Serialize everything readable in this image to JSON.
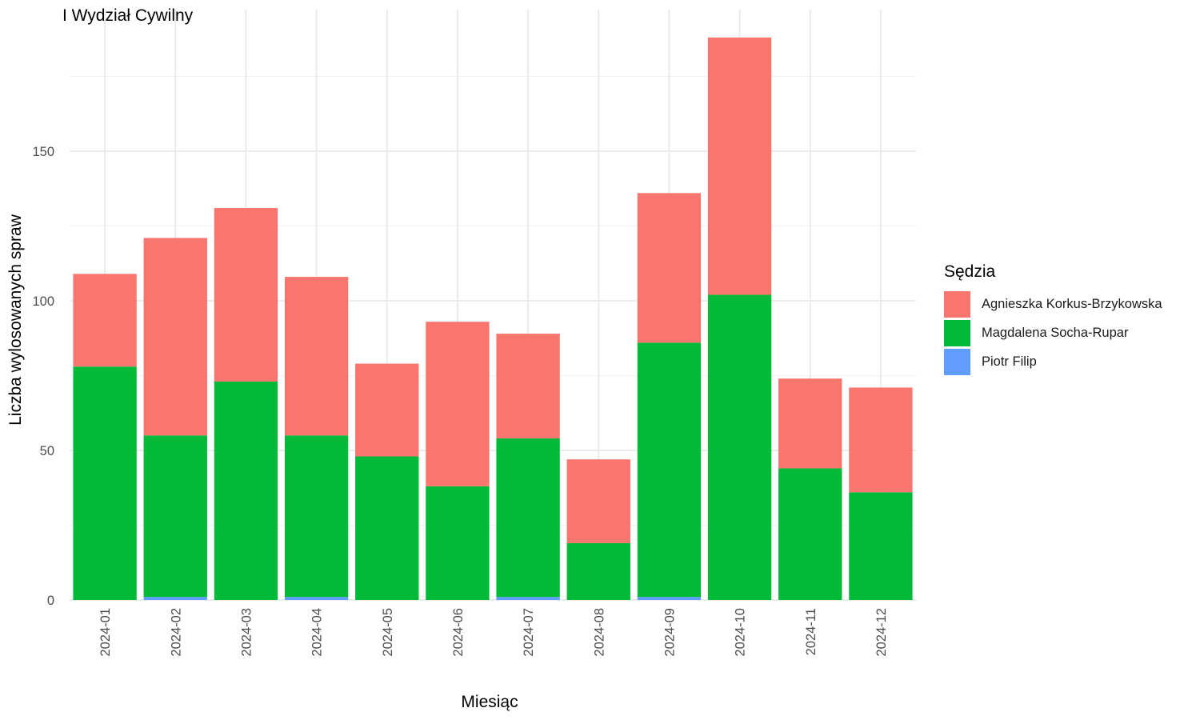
{
  "chart_data": {
    "type": "bar",
    "stacked": true,
    "title": "I Wydział Cywilny",
    "xlabel": "Miesiąc",
    "ylabel": "Liczba wylosowanych spraw",
    "categories": [
      "2024-01",
      "2024-02",
      "2024-03",
      "2024-04",
      "2024-05",
      "2024-06",
      "2024-07",
      "2024-08",
      "2024-09",
      "2024-10",
      "2024-11",
      "2024-12"
    ],
    "ylim": [
      0,
      192
    ],
    "yticks": [
      0,
      50,
      100,
      150
    ],
    "grid": true,
    "legend_title": "Sędzia",
    "legend_position": "right",
    "series": [
      {
        "name": "Agnieszka Korkus-Brzykowska",
        "color": "#F8766D",
        "values": [
          31,
          66,
          58,
          53,
          31,
          55,
          35,
          28,
          50,
          86,
          30,
          35
        ]
      },
      {
        "name": "Magdalena Socha-Rupar",
        "color": "#00BA38",
        "values": [
          78,
          54,
          73,
          54,
          48,
          38,
          53,
          19,
          85,
          102,
          44,
          36
        ]
      },
      {
        "name": "Piotr Filip",
        "color": "#619CFF",
        "values": [
          0,
          1,
          0,
          1,
          0,
          0,
          1,
          0,
          1,
          0,
          0,
          0
        ]
      }
    ],
    "stack_order_bottom_to_top": [
      "Piotr Filip",
      "Magdalena Socha-Rupar",
      "Agnieszka Korkus-Brzykowska"
    ]
  }
}
